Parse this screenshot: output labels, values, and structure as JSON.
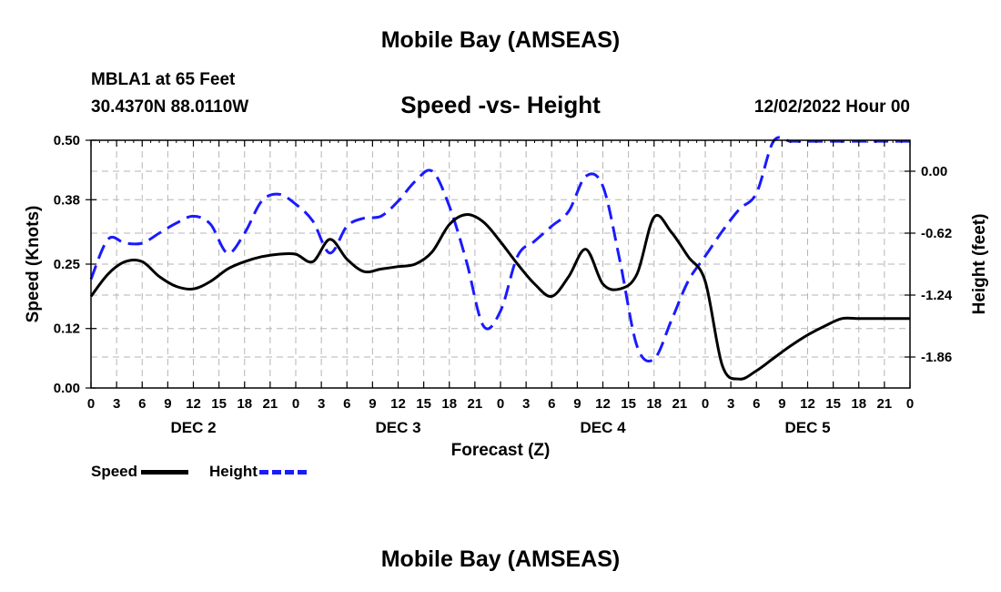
{
  "header": {
    "main_title": "Mobile Bay (AMSEAS)",
    "station_name": "MBLA1 at 65 Feet",
    "station_coords": "30.4370N  88.0110W",
    "chart_title": "Speed -vs- Height",
    "forecast_time": "12/02/2022 Hour 00",
    "bottom_title": "Mobile Bay (AMSEAS)"
  },
  "legend": {
    "speed_label": "Speed",
    "height_label": "Height"
  },
  "chart_data": {
    "type": "line",
    "title": "Speed -vs- Height",
    "xlabel": "Forecast (Z)",
    "ylabel_left": "Speed (Knots)",
    "ylabel_right": "Height (feet)",
    "xlim": [
      0,
      96
    ],
    "ylim_left": [
      0,
      0.5
    ],
    "ylim_right": [
      -2.17,
      0.31
    ],
    "x_ticks": [
      0,
      3,
      6,
      9,
      12,
      15,
      18,
      21,
      24,
      27,
      30,
      33,
      36,
      39,
      42,
      45,
      48,
      51,
      54,
      57,
      60,
      63,
      66,
      69,
      72,
      75,
      78,
      81,
      84,
      87,
      90,
      93,
      96
    ],
    "x_tick_labels": [
      "0",
      "3",
      "6",
      "9",
      "12",
      "15",
      "18",
      "21",
      "0",
      "3",
      "6",
      "9",
      "12",
      "15",
      "18",
      "21",
      "0",
      "3",
      "6",
      "9",
      "12",
      "15",
      "18",
      "21",
      "0",
      "3",
      "6",
      "9",
      "12",
      "15",
      "18",
      "21",
      "0"
    ],
    "day_labels": [
      {
        "x": 12,
        "label": "DEC 2"
      },
      {
        "x": 36,
        "label": "DEC 3"
      },
      {
        "x": 60,
        "label": "DEC 4"
      },
      {
        "x": 84,
        "label": "DEC 5"
      }
    ],
    "y_ticks_left": [
      0.0,
      0.12,
      0.25,
      0.38,
      0.5
    ],
    "y_tick_labels_left": [
      "0.00",
      "0.12",
      "0.25",
      "0.38",
      "0.50"
    ],
    "y_ticks_right": [
      -1.86,
      -1.24,
      -0.62,
      0.0
    ],
    "y_tick_labels_right": [
      "-1.86",
      "-1.24",
      "-0.62",
      "0.00"
    ],
    "grid": true,
    "legend_position": "bottom-left",
    "series": [
      {
        "name": "Speed",
        "axis": "left",
        "color": "#000000",
        "style": "solid",
        "x": [
          0,
          2,
          4,
          6,
          8,
          10,
          12,
          14,
          16,
          18,
          20,
          22,
          24,
          26,
          28,
          30,
          32,
          34,
          36,
          38,
          40,
          42,
          44,
          46,
          48,
          50,
          52,
          54,
          56,
          58,
          60,
          62,
          64,
          66,
          68,
          70,
          72,
          74,
          76,
          78,
          80,
          82,
          84,
          86,
          88,
          90,
          92,
          94,
          96
        ],
        "values": [
          0.185,
          0.23,
          0.255,
          0.255,
          0.225,
          0.205,
          0.2,
          0.215,
          0.24,
          0.255,
          0.265,
          0.27,
          0.27,
          0.255,
          0.3,
          0.26,
          0.235,
          0.24,
          0.245,
          0.25,
          0.275,
          0.33,
          0.35,
          0.335,
          0.295,
          0.25,
          0.21,
          0.185,
          0.225,
          0.28,
          0.21,
          0.2,
          0.23,
          0.345,
          0.315,
          0.265,
          0.215,
          0.045,
          0.018,
          0.035,
          0.06,
          0.085,
          0.107,
          0.125,
          0.14,
          0.14,
          0.14,
          0.14,
          0.14
        ]
      },
      {
        "name": "Height",
        "axis": "right",
        "color": "#1a1aff",
        "style": "dashed",
        "x": [
          0,
          2,
          4,
          6,
          8,
          10,
          12,
          14,
          16,
          18,
          20,
          22,
          24,
          26,
          28,
          30,
          32,
          34,
          36,
          38,
          40,
          42,
          44,
          46,
          48,
          50,
          52,
          54,
          56,
          58,
          60,
          62,
          64,
          66,
          68,
          70,
          72,
          74,
          76,
          78,
          80,
          82,
          84,
          86,
          88,
          90,
          92,
          94,
          96
        ],
        "values": [
          -1.08,
          -0.68,
          -0.72,
          -0.72,
          -0.62,
          -0.52,
          -0.45,
          -0.53,
          -0.82,
          -0.62,
          -0.3,
          -0.23,
          -0.33,
          -0.5,
          -0.82,
          -0.55,
          -0.47,
          -0.45,
          -0.3,
          -0.1,
          0.0,
          -0.35,
          -0.9,
          -1.55,
          -1.4,
          -0.85,
          -0.7,
          -0.55,
          -0.4,
          -0.05,
          -0.15,
          -0.9,
          -1.75,
          -1.88,
          -1.5,
          -1.1,
          -0.85,
          -0.6,
          -0.38,
          -0.22,
          0.3,
          0.3,
          0.3,
          0.3,
          0.3,
          0.3,
          0.3,
          0.3,
          0.3
        ]
      }
    ]
  }
}
